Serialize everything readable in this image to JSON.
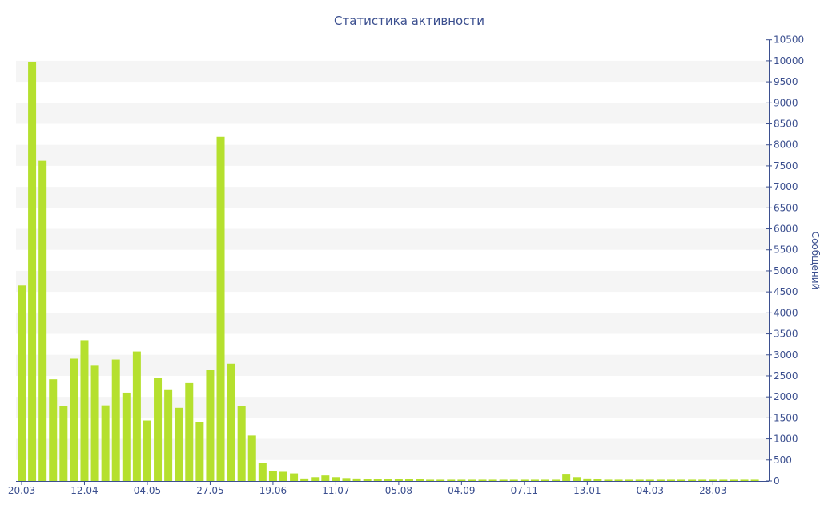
{
  "chart_data": {
    "type": "bar",
    "title": "Статистика активности",
    "xlabel": "",
    "ylabel": "Сообщений",
    "ylim": [
      0,
      10500
    ],
    "y_ticks": [
      0,
      500,
      1000,
      1500,
      2000,
      2500,
      3000,
      3500,
      4000,
      4500,
      5000,
      5500,
      6000,
      6500,
      7000,
      7500,
      8000,
      8500,
      9000,
      9500,
      10000,
      10500
    ],
    "y_axis_position": "right",
    "x_tick_labels": [
      "20.03",
      "12.04",
      "04.05",
      "27.05",
      "19.06",
      "11.07",
      "05.08",
      "04.09",
      "07.11",
      "13.01",
      "04.03",
      "28.03"
    ],
    "x_tick_bar_index": [
      0,
      6,
      12,
      18,
      24,
      30,
      36,
      42,
      48,
      54,
      60,
      66
    ],
    "alternating_bands": true,
    "bar_color": "#b5e02e",
    "text_color": "#3b4f8f",
    "band_color": "#f5f5f5",
    "values": [
      4650,
      9980,
      7620,
      2420,
      1790,
      2910,
      3350,
      2760,
      1800,
      2890,
      2100,
      3080,
      1440,
      2450,
      2180,
      1740,
      2330,
      1400,
      2640,
      8190,
      2790,
      1790,
      1080,
      430,
      230,
      220,
      180,
      60,
      90,
      130,
      90,
      70,
      60,
      50,
      50,
      40,
      40,
      40,
      40,
      30,
      30,
      30,
      30,
      30,
      30,
      30,
      30,
      30,
      30,
      30,
      30,
      30,
      170,
      90,
      60,
      40,
      30,
      30,
      30,
      30,
      30,
      30,
      30,
      30,
      30,
      30,
      30,
      30,
      30,
      30,
      30
    ]
  }
}
